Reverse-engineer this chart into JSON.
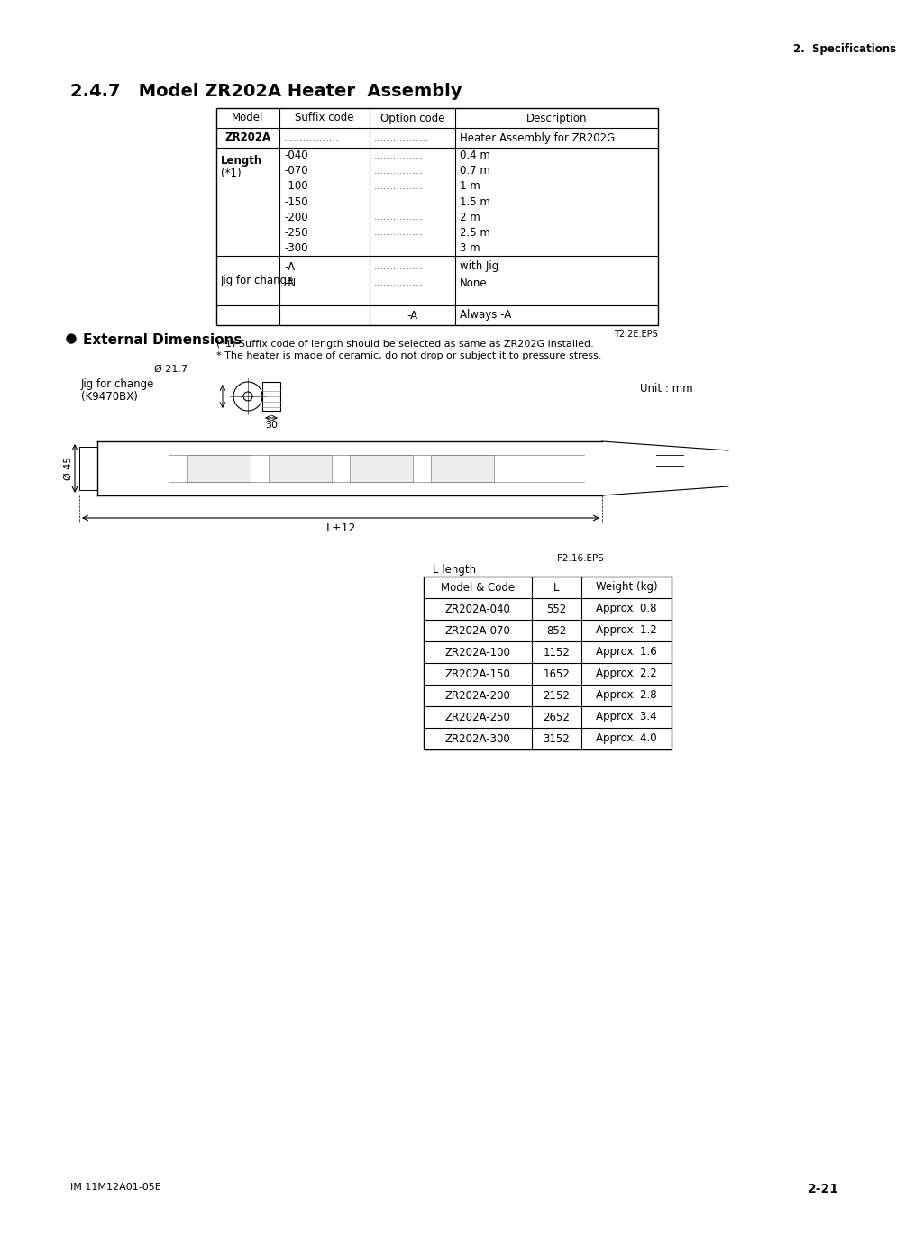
{
  "page_title": "2.4.7   Model ZR202A Heater  Assembly",
  "header_right": "2.  Specifications",
  "footer_left": "IM 11M12A01-05E",
  "footer_right": "2-21",
  "section2_title": "●  External Dimensions",
  "table1_headers": [
    "Model",
    "Suffix code",
    "Option code",
    "Description"
  ],
  "table1_rows": [
    [
      "ZR202A",
      ".................",
      ".................",
      "Heater Assembly for ZR202G"
    ],
    [
      "Length\n(*1)",
      "-040\n-070\n-100\n-150\n-200\n-250\n-300",
      ".................\n.................\n.................\n.................\n.................\n.................\n.................",
      "0.4 m\n0.7 m\n1 m\n1.5 m\n2 m\n2.5 m\n3 m"
    ],
    [
      "Jig for change",
      "-A\n-N",
      ".................\n.................",
      "with Jig\nNone"
    ],
    [
      "",
      "",
      "-A",
      "Always -A"
    ]
  ],
  "table1_note1": "T2.2E.EPS",
  "table1_note2": "(*1) Suffix code of length should be selected as same as ZR202G installed.",
  "table1_note3": "* The heater is made of ceramic, do not drop or subject it to pressure stress.",
  "jig_label1": "Jig for change",
  "jig_label2": "(K9470BX)",
  "dim_21_7": "Ø 21.7",
  "dim_30": "30",
  "unit_label": "Unit : mm",
  "dim_45": "Ø 45",
  "dim_L12": "L±12",
  "dim_Llength": "L length",
  "fig_label": "F2.16.EPS",
  "table2_headers": [
    "Model & Code",
    "L",
    "Weight (kg)"
  ],
  "table2_rows": [
    [
      "ZR202A-040",
      "552",
      "Approx. 0.8"
    ],
    [
      "ZR202A-070",
      "852",
      "Approx. 1.2"
    ],
    [
      "ZR202A-100",
      "1152",
      "Approx. 1.6"
    ],
    [
      "ZR202A-150",
      "1652",
      "Approx. 2.2"
    ],
    [
      "ZR202A-200",
      "2152",
      "Approx. 2.8"
    ],
    [
      "ZR202A-250",
      "2652",
      "Approx. 3.4"
    ],
    [
      "ZR202A-300",
      "3152",
      "Approx. 4.0"
    ]
  ]
}
